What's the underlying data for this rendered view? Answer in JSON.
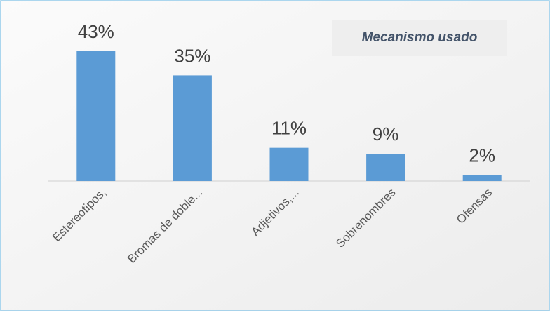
{
  "chart_data": {
    "type": "bar",
    "title": "Mecanismo usado",
    "categories": [
      "Estereotipos,",
      "Bromas de doble...",
      "Adjetivos,...",
      "Sobrenombres",
      "Ofensas"
    ],
    "values": [
      43,
      35,
      11,
      9,
      2
    ],
    "value_labels": [
      "43%",
      "35%",
      "11%",
      "9%",
      "2%"
    ],
    "color": "#5b9bd5"
  }
}
